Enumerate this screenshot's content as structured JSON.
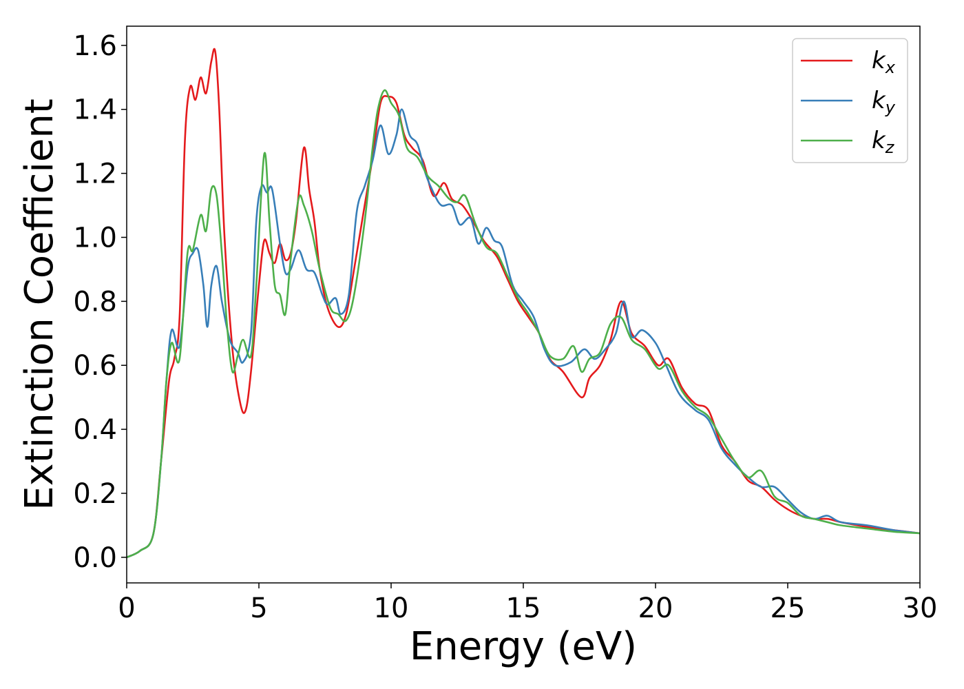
{
  "chart_data": {
    "type": "line",
    "title": "",
    "xlabel": "Energy (eV)",
    "ylabel": "Extinction Coefficient",
    "xlim": [
      0,
      30
    ],
    "ylim": [
      -0.08,
      1.66
    ],
    "xticks": [
      0,
      5,
      10,
      15,
      20,
      25,
      30
    ],
    "yticks": [
      "0.0",
      "0.2",
      "0.4",
      "0.6",
      "0.8",
      "1.0",
      "1.2",
      "1.4",
      "1.6"
    ],
    "grid": false,
    "legend": "top-right",
    "series": [
      {
        "name": "k",
        "subscript": "x",
        "color": "#e41a1c",
        "points": [
          [
            0,
            0.0
          ],
          [
            0.5,
            0.02
          ],
          [
            1.0,
            0.07
          ],
          [
            1.3,
            0.3
          ],
          [
            1.6,
            0.55
          ],
          [
            1.8,
            0.62
          ],
          [
            2.0,
            0.75
          ],
          [
            2.2,
            1.3
          ],
          [
            2.4,
            1.47
          ],
          [
            2.6,
            1.43
          ],
          [
            2.8,
            1.5
          ],
          [
            3.0,
            1.45
          ],
          [
            3.2,
            1.55
          ],
          [
            3.35,
            1.58
          ],
          [
            3.5,
            1.4
          ],
          [
            3.7,
            1.0
          ],
          [
            4.0,
            0.65
          ],
          [
            4.3,
            0.48
          ],
          [
            4.5,
            0.46
          ],
          [
            4.7,
            0.58
          ],
          [
            5.0,
            0.85
          ],
          [
            5.2,
            0.99
          ],
          [
            5.4,
            0.95
          ],
          [
            5.6,
            0.92
          ],
          [
            5.8,
            0.98
          ],
          [
            6.0,
            0.93
          ],
          [
            6.2,
            0.95
          ],
          [
            6.4,
            1.05
          ],
          [
            6.7,
            1.28
          ],
          [
            6.9,
            1.15
          ],
          [
            7.1,
            1.05
          ],
          [
            7.3,
            0.9
          ],
          [
            7.6,
            0.78
          ],
          [
            8.0,
            0.72
          ],
          [
            8.3,
            0.76
          ],
          [
            8.6,
            0.9
          ],
          [
            9.0,
            1.1
          ],
          [
            9.3,
            1.25
          ],
          [
            9.6,
            1.42
          ],
          [
            9.9,
            1.44
          ],
          [
            10.2,
            1.42
          ],
          [
            10.5,
            1.32
          ],
          [
            10.8,
            1.28
          ],
          [
            11.2,
            1.24
          ],
          [
            11.6,
            1.13
          ],
          [
            12.0,
            1.17
          ],
          [
            12.3,
            1.12
          ],
          [
            12.7,
            1.1
          ],
          [
            13.1,
            1.05
          ],
          [
            13.5,
            0.99
          ],
          [
            14.0,
            0.94
          ],
          [
            14.4,
            0.87
          ],
          [
            14.8,
            0.8
          ],
          [
            15.2,
            0.75
          ],
          [
            15.6,
            0.7
          ],
          [
            16.0,
            0.62
          ],
          [
            16.5,
            0.58
          ],
          [
            17.2,
            0.5
          ],
          [
            17.5,
            0.56
          ],
          [
            17.9,
            0.6
          ],
          [
            18.3,
            0.68
          ],
          [
            18.7,
            0.8
          ],
          [
            19.1,
            0.7
          ],
          [
            19.6,
            0.66
          ],
          [
            20.1,
            0.6
          ],
          [
            20.5,
            0.62
          ],
          [
            21.0,
            0.53
          ],
          [
            21.5,
            0.48
          ],
          [
            22.0,
            0.46
          ],
          [
            22.5,
            0.35
          ],
          [
            23.0,
            0.3
          ],
          [
            23.5,
            0.24
          ],
          [
            24.0,
            0.22
          ],
          [
            24.5,
            0.18
          ],
          [
            25.0,
            0.15
          ],
          [
            25.5,
            0.13
          ],
          [
            26.0,
            0.12
          ],
          [
            26.5,
            0.12
          ],
          [
            27.0,
            0.11
          ],
          [
            28.0,
            0.095
          ],
          [
            29.0,
            0.085
          ],
          [
            30.0,
            0.075
          ]
        ]
      },
      {
        "name": "k",
        "subscript": "y",
        "color": "#377eb8",
        "points": [
          [
            0,
            0.0
          ],
          [
            0.5,
            0.02
          ],
          [
            1.0,
            0.07
          ],
          [
            1.3,
            0.3
          ],
          [
            1.5,
            0.55
          ],
          [
            1.7,
            0.71
          ],
          [
            2.0,
            0.66
          ],
          [
            2.3,
            0.9
          ],
          [
            2.5,
            0.95
          ],
          [
            2.7,
            0.96
          ],
          [
            2.9,
            0.85
          ],
          [
            3.05,
            0.72
          ],
          [
            3.2,
            0.85
          ],
          [
            3.4,
            0.91
          ],
          [
            3.6,
            0.8
          ],
          [
            3.9,
            0.68
          ],
          [
            4.2,
            0.64
          ],
          [
            4.4,
            0.61
          ],
          [
            4.7,
            0.7
          ],
          [
            4.9,
            1.05
          ],
          [
            5.1,
            1.16
          ],
          [
            5.3,
            1.14
          ],
          [
            5.5,
            1.15
          ],
          [
            5.8,
            0.98
          ],
          [
            6.0,
            0.89
          ],
          [
            6.2,
            0.9
          ],
          [
            6.5,
            0.96
          ],
          [
            6.8,
            0.9
          ],
          [
            7.1,
            0.89
          ],
          [
            7.4,
            0.82
          ],
          [
            7.6,
            0.79
          ],
          [
            7.9,
            0.81
          ],
          [
            8.1,
            0.76
          ],
          [
            8.4,
            0.82
          ],
          [
            8.7,
            1.08
          ],
          [
            9.0,
            1.16
          ],
          [
            9.3,
            1.24
          ],
          [
            9.6,
            1.35
          ],
          [
            9.9,
            1.26
          ],
          [
            10.2,
            1.32
          ],
          [
            10.4,
            1.4
          ],
          [
            10.7,
            1.32
          ],
          [
            11.0,
            1.29
          ],
          [
            11.3,
            1.2
          ],
          [
            11.6,
            1.14
          ],
          [
            11.9,
            1.1
          ],
          [
            12.3,
            1.1
          ],
          [
            12.6,
            1.04
          ],
          [
            13.0,
            1.06
          ],
          [
            13.3,
            0.98
          ],
          [
            13.6,
            1.03
          ],
          [
            13.9,
            0.99
          ],
          [
            14.2,
            0.97
          ],
          [
            14.6,
            0.85
          ],
          [
            15.0,
            0.8
          ],
          [
            15.4,
            0.75
          ],
          [
            15.8,
            0.65
          ],
          [
            16.2,
            0.6
          ],
          [
            16.8,
            0.61
          ],
          [
            17.3,
            0.65
          ],
          [
            17.7,
            0.62
          ],
          [
            18.1,
            0.65
          ],
          [
            18.5,
            0.7
          ],
          [
            18.8,
            0.8
          ],
          [
            19.1,
            0.69
          ],
          [
            19.5,
            0.71
          ],
          [
            20.0,
            0.67
          ],
          [
            20.4,
            0.6
          ],
          [
            20.9,
            0.51
          ],
          [
            21.5,
            0.46
          ],
          [
            22.0,
            0.43
          ],
          [
            22.5,
            0.34
          ],
          [
            23.0,
            0.29
          ],
          [
            23.5,
            0.25
          ],
          [
            24.0,
            0.22
          ],
          [
            24.5,
            0.22
          ],
          [
            25.0,
            0.18
          ],
          [
            25.5,
            0.14
          ],
          [
            26.0,
            0.12
          ],
          [
            26.5,
            0.13
          ],
          [
            27.0,
            0.11
          ],
          [
            28.0,
            0.1
          ],
          [
            29.0,
            0.085
          ],
          [
            30.0,
            0.075
          ]
        ]
      },
      {
        "name": "k",
        "subscript": "z",
        "color": "#4daf4a",
        "points": [
          [
            0,
            0.0
          ],
          [
            0.5,
            0.02
          ],
          [
            1.0,
            0.07
          ],
          [
            1.3,
            0.3
          ],
          [
            1.5,
            0.55
          ],
          [
            1.7,
            0.67
          ],
          [
            2.0,
            0.62
          ],
          [
            2.3,
            0.95
          ],
          [
            2.5,
            0.96
          ],
          [
            2.8,
            1.07
          ],
          [
            3.0,
            1.02
          ],
          [
            3.2,
            1.15
          ],
          [
            3.4,
            1.13
          ],
          [
            3.6,
            0.95
          ],
          [
            3.8,
            0.72
          ],
          [
            4.0,
            0.58
          ],
          [
            4.2,
            0.63
          ],
          [
            4.4,
            0.68
          ],
          [
            4.7,
            0.63
          ],
          [
            4.9,
            0.85
          ],
          [
            5.2,
            1.26
          ],
          [
            5.4,
            1.05
          ],
          [
            5.6,
            0.85
          ],
          [
            5.8,
            0.82
          ],
          [
            6.0,
            0.76
          ],
          [
            6.2,
            0.93
          ],
          [
            6.5,
            1.12
          ],
          [
            6.7,
            1.1
          ],
          [
            7.0,
            1.02
          ],
          [
            7.3,
            0.9
          ],
          [
            7.7,
            0.78
          ],
          [
            8.0,
            0.76
          ],
          [
            8.3,
            0.74
          ],
          [
            8.6,
            0.82
          ],
          [
            9.0,
            1.05
          ],
          [
            9.3,
            1.28
          ],
          [
            9.5,
            1.4
          ],
          [
            9.75,
            1.46
          ],
          [
            10.0,
            1.42
          ],
          [
            10.3,
            1.38
          ],
          [
            10.6,
            1.28
          ],
          [
            11.0,
            1.25
          ],
          [
            11.4,
            1.19
          ],
          [
            11.8,
            1.16
          ],
          [
            12.2,
            1.12
          ],
          [
            12.5,
            1.11
          ],
          [
            12.8,
            1.13
          ],
          [
            13.2,
            1.04
          ],
          [
            13.6,
            0.97
          ],
          [
            14.0,
            0.95
          ],
          [
            14.4,
            0.88
          ],
          [
            14.8,
            0.81
          ],
          [
            15.2,
            0.76
          ],
          [
            15.6,
            0.7
          ],
          [
            16.0,
            0.63
          ],
          [
            16.5,
            0.62
          ],
          [
            16.9,
            0.66
          ],
          [
            17.2,
            0.58
          ],
          [
            17.5,
            0.62
          ],
          [
            17.9,
            0.64
          ],
          [
            18.3,
            0.73
          ],
          [
            18.7,
            0.75
          ],
          [
            19.1,
            0.68
          ],
          [
            19.6,
            0.65
          ],
          [
            20.1,
            0.59
          ],
          [
            20.5,
            0.6
          ],
          [
            21.0,
            0.52
          ],
          [
            21.5,
            0.47
          ],
          [
            22.0,
            0.44
          ],
          [
            22.5,
            0.37
          ],
          [
            23.0,
            0.3
          ],
          [
            23.5,
            0.25
          ],
          [
            24.0,
            0.27
          ],
          [
            24.5,
            0.19
          ],
          [
            25.0,
            0.17
          ],
          [
            25.5,
            0.13
          ],
          [
            26.0,
            0.12
          ],
          [
            26.5,
            0.11
          ],
          [
            27.0,
            0.1
          ],
          [
            28.0,
            0.09
          ],
          [
            29.0,
            0.08
          ],
          [
            30.0,
            0.075
          ]
        ]
      }
    ]
  }
}
